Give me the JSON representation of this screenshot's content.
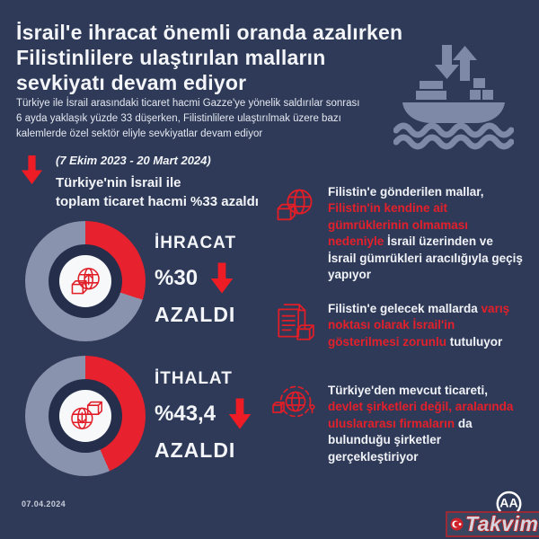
{
  "header": {
    "title_lines": [
      "İsrail'e ihracat önemli oranda azalırken",
      "Filistinlilere ulaştırılan malların",
      "sevkiyatı devam ediyor"
    ],
    "intro_lines": [
      "Türkiye ile İsrail arasındaki ticaret hacmi Gazze'ye yönelik saldırılar sonrası",
      "6 ayda yaklaşık yüzde 33 düşerken, Filistinlilere ulaştırılmak üzere bazı",
      "kalemlerde özel sektör eliyle sevkiyatlar devam ediyor"
    ]
  },
  "period": {
    "range": "(7 Ekim 2023 - 20 Mart 2024)",
    "line1": "Türkiye'nin İsrail ile",
    "line2": "toplam ticaret hacmi %33 azaldı",
    "total_trade_change_pct": -33
  },
  "chart_data": [
    {
      "type": "pie",
      "variant": "donut",
      "title": "İHRACAT",
      "value_label": "%30",
      "status_label": "AZALDI",
      "change_pct": -30,
      "start_angle_deg": 0,
      "direction": "clockwise",
      "series": [
        {
          "name": "azalış",
          "value": 30,
          "color": "#e8212e"
        },
        {
          "name": "kalan",
          "value": 70,
          "color": "#8a93ad"
        }
      ]
    },
    {
      "type": "pie",
      "variant": "donut",
      "title": "İTHALAT",
      "value_label": "%43,4",
      "status_label": "AZALDI",
      "change_pct": -43.4,
      "start_angle_deg": 0,
      "direction": "clockwise",
      "series": [
        {
          "name": "azalış",
          "value": 43.4,
          "color": "#e8212e"
        },
        {
          "name": "kalan",
          "value": 56.6,
          "color": "#8a93ad"
        }
      ]
    }
  ],
  "bullets": [
    {
      "icon": "globe-box-icon",
      "segments": [
        {
          "text": "Filistin'e gönderilen mallar, ",
          "emphasis": false
        },
        {
          "text": "Filistin'in kendine ait gümrüklerinin olmaması nedeniyle",
          "emphasis": true
        },
        {
          "text": " İsrail üzerinden ve İsrail gümrükleri aracılığıyla geçiş yapıyor",
          "emphasis": false
        }
      ]
    },
    {
      "icon": "documents-box-icon",
      "segments": [
        {
          "text": "Filistin'e gelecek mallarda ",
          "emphasis": false
        },
        {
          "text": "varış noktası olarak İsrail'in gösterilmesi zorunlu",
          "emphasis": true
        },
        {
          "text": " tutuluyor",
          "emphasis": false
        }
      ]
    },
    {
      "icon": "globe-network-icon",
      "segments": [
        {
          "text": "Türkiye'den mevcut ticareti, ",
          "emphasis": false
        },
        {
          "text": "devlet şirketleri değil, aralarında uluslararası firmaların",
          "emphasis": true
        },
        {
          "text": " da bulunduğu şirketler gerçekleştiriyor",
          "emphasis": false
        }
      ]
    }
  ],
  "footer": {
    "date": "07.04.2024",
    "agency_initials": "AA",
    "watermark": "Takvim"
  },
  "colors": {
    "background": "#2e3a57",
    "accent_red": "#e8212e",
    "muted_blue": "#8a93ad",
    "ship_blue": "#7d89a6",
    "text": "#f3f5f9",
    "donut_hole": "#252e4b",
    "donut_core": "#f7f8fa"
  }
}
